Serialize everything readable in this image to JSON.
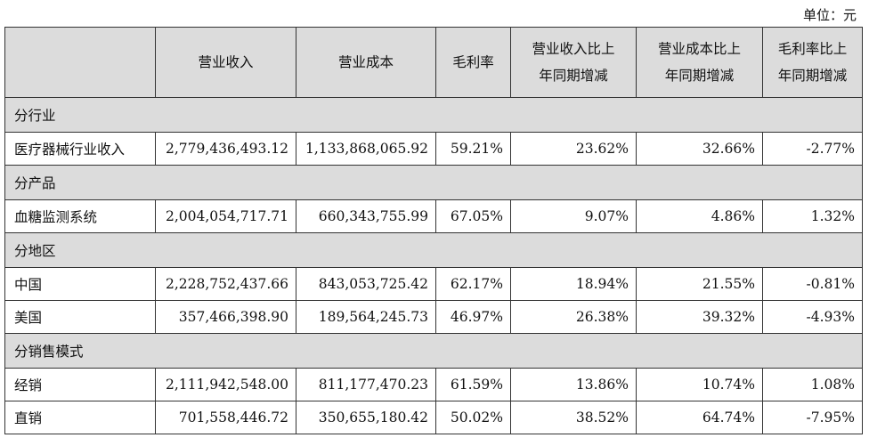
{
  "unit_label": "单位：元",
  "headers": [
    [
      ""
    ],
    [
      "营业收入"
    ],
    [
      "营业成本"
    ],
    [
      "毛利率"
    ],
    [
      "营业收入比上",
      "年同期增减"
    ],
    [
      "营业成本比上",
      "年同期增减"
    ],
    [
      "毛利率比上",
      "年同期增减"
    ]
  ],
  "sections": [
    {
      "title": "分行业",
      "rows": [
        {
          "label": "医疗器械行业收入",
          "values": [
            "2,779,436,493.12",
            "1,133,868,065.92",
            "59.21%",
            "23.62%",
            "32.66%",
            "-2.77%"
          ]
        }
      ]
    },
    {
      "title": "分产品",
      "rows": [
        {
          "label": "血糖监测系统",
          "values": [
            "2,004,054,717.71",
            "660,343,755.99",
            "67.05%",
            "9.07%",
            "4.86%",
            "1.32%"
          ]
        }
      ]
    },
    {
      "title": "分地区",
      "rows": [
        {
          "label": "中国",
          "values": [
            "2,228,752,437.66",
            "843,053,725.42",
            "62.17%",
            "18.94%",
            "21.55%",
            "-0.81%"
          ]
        },
        {
          "label": "美国",
          "values": [
            "357,466,398.90",
            "189,564,245.73",
            "46.97%",
            "26.38%",
            "39.32%",
            "-4.93%"
          ]
        }
      ]
    },
    {
      "title": "分销售模式",
      "rows": [
        {
          "label": "经销",
          "values": [
            "2,111,942,548.00",
            "811,177,470.23",
            "61.59%",
            "13.86%",
            "10.74%",
            "1.08%"
          ]
        },
        {
          "label": "直销",
          "values": [
            "701,558,446.72",
            "350,655,180.42",
            "50.02%",
            "38.52%",
            "64.74%",
            "-7.95%"
          ]
        }
      ]
    }
  ]
}
